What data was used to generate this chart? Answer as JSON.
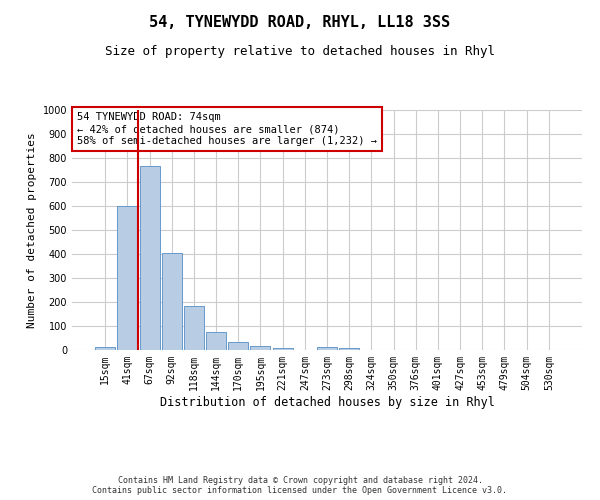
{
  "title": "54, TYNEWYDD ROAD, RHYL, LL18 3SS",
  "subtitle": "Size of property relative to detached houses in Rhyl",
  "xlabel": "Distribution of detached houses by size in Rhyl",
  "ylabel": "Number of detached properties",
  "categories": [
    "15sqm",
    "41sqm",
    "67sqm",
    "92sqm",
    "118sqm",
    "144sqm",
    "170sqm",
    "195sqm",
    "221sqm",
    "247sqm",
    "273sqm",
    "298sqm",
    "324sqm",
    "350sqm",
    "376sqm",
    "401sqm",
    "427sqm",
    "453sqm",
    "479sqm",
    "504sqm",
    "530sqm"
  ],
  "values": [
    13,
    600,
    765,
    405,
    185,
    75,
    35,
    15,
    10,
    0,
    13,
    7,
    0,
    0,
    0,
    0,
    0,
    0,
    0,
    0,
    0
  ],
  "bar_color": "#b8cce4",
  "bar_edge_color": "#6699cc",
  "grid_color": "#cccccc",
  "bg_color": "#ffffff",
  "annotation_text": "54 TYNEWYDD ROAD: 74sqm\n← 42% of detached houses are smaller (874)\n58% of semi-detached houses are larger (1,232) →",
  "annotation_box_color": "#ffffff",
  "annotation_box_edge_color": "#cc0000",
  "vline_color": "#cc0000",
  "vline_x": 1.5,
  "ylim": [
    0,
    1000
  ],
  "yticks": [
    0,
    100,
    200,
    300,
    400,
    500,
    600,
    700,
    800,
    900,
    1000
  ],
  "footer": "Contains HM Land Registry data © Crown copyright and database right 2024.\nContains public sector information licensed under the Open Government Licence v3.0.",
  "title_fontsize": 11,
  "subtitle_fontsize": 9,
  "xlabel_fontsize": 8.5,
  "ylabel_fontsize": 8,
  "tick_fontsize": 7,
  "annotation_fontsize": 7.5,
  "footer_fontsize": 6
}
